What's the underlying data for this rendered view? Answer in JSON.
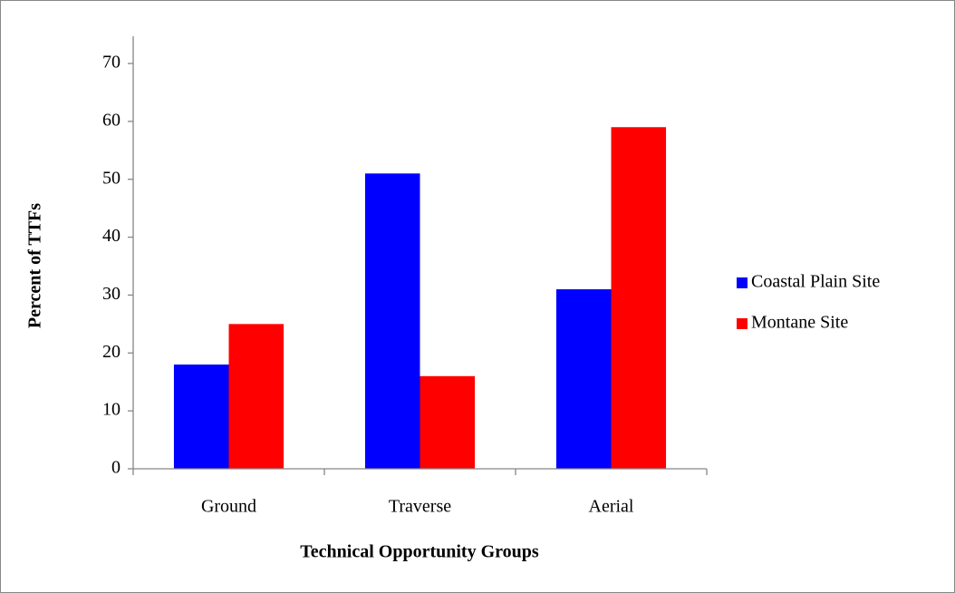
{
  "chart_data": {
    "type": "bar",
    "x_label": "Technical Opportunity Groups",
    "y_label": "Percent of TTFs",
    "categories": [
      "Ground",
      "Traverse",
      "Aerial"
    ],
    "series": [
      {
        "name": "Coastal Plain Site",
        "color": "#0000ff",
        "values": [
          18,
          51,
          31
        ]
      },
      {
        "name": "Montane Site",
        "color": "#ff0000",
        "values": [
          25,
          16,
          59
        ]
      }
    ],
    "ylim": [
      0,
      70
    ],
    "yticks": [
      0,
      10,
      20,
      30,
      40,
      50,
      60,
      70
    ],
    "grid": false,
    "legend": "right"
  }
}
